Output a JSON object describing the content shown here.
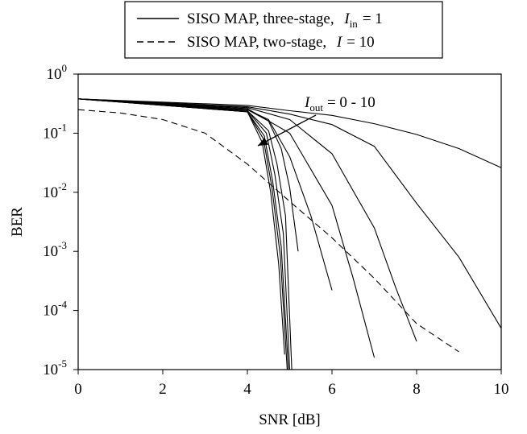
{
  "chart_data": {
    "type": "line",
    "xlabel": "SNR [dB]",
    "ylabel": "BER",
    "xlim": [
      0,
      10
    ],
    "ylim": [
      1e-05,
      1
    ],
    "yscale": "log",
    "grid": false,
    "legend_position": "top-center",
    "x_ticks": [
      "0",
      "2",
      "4",
      "6",
      "8",
      "10"
    ],
    "y_ticks": [
      {
        "base": "10",
        "exp": "0"
      },
      {
        "base": "10",
        "exp": "-1"
      },
      {
        "base": "10",
        "exp": "-2"
      },
      {
        "base": "10",
        "exp": "-3"
      },
      {
        "base": "10",
        "exp": "-4"
      },
      {
        "base": "10",
        "exp": "-5"
      }
    ],
    "legend": [
      {
        "text": "SISO MAP, three-stage,",
        "var": "I",
        "sub": "in",
        "eq": "= 1",
        "style": "solid"
      },
      {
        "text": "SISO MAP, two-stage,",
        "var": "I",
        "sub": "",
        "eq": "= 10",
        "style": "dashed"
      }
    ],
    "annotation": {
      "var": "I",
      "sub": "out",
      "text": "= 0 - 10"
    },
    "series": [
      {
        "style": "solid",
        "x": [
          0,
          4,
          5,
          6,
          7,
          8,
          9,
          10
        ],
        "y": [
          0.38,
          0.295,
          0.24,
          0.2,
          0.145,
          0.095,
          0.055,
          0.026
        ]
      },
      {
        "style": "solid",
        "x": [
          0,
          4,
          5,
          6,
          7,
          8,
          9,
          10
        ],
        "y": [
          0.38,
          0.28,
          0.21,
          0.14,
          0.06,
          0.0065,
          0.0008,
          5e-05
        ]
      },
      {
        "style": "solid",
        "x": [
          0,
          4,
          5,
          6,
          7,
          7.5,
          8
        ],
        "y": [
          0.38,
          0.27,
          0.17,
          0.045,
          0.0025,
          0.00025,
          3e-05
        ]
      },
      {
        "style": "solid",
        "x": [
          0,
          4,
          5,
          6,
          6.5,
          7
        ],
        "y": [
          0.38,
          0.26,
          0.1,
          0.006,
          0.00035,
          1.6e-05
        ]
      },
      {
        "style": "solid",
        "x": [
          0,
          4,
          4.5,
          5,
          5.5,
          6
        ],
        "y": [
          0.38,
          0.25,
          0.17,
          0.04,
          0.004,
          0.00022
        ]
      },
      {
        "style": "solid",
        "x": [
          0,
          4,
          4.5,
          4.8,
          5,
          5.2
        ],
        "y": [
          0.38,
          0.25,
          0.16,
          0.055,
          0.012,
          0.001
        ]
      },
      {
        "style": "solid",
        "x": [
          0,
          4,
          4.5,
          4.7,
          4.9,
          5.05
        ],
        "y": [
          0.38,
          0.24,
          0.11,
          0.03,
          0.004,
          1e-05
        ]
      },
      {
        "style": "solid",
        "x": [
          0,
          4,
          4.45,
          4.65,
          4.85,
          5.0
        ],
        "y": [
          0.38,
          0.24,
          0.1,
          0.02,
          0.002,
          1e-05
        ]
      },
      {
        "style": "solid",
        "x": [
          0,
          4,
          4.4,
          4.6,
          4.8,
          4.97
        ],
        "y": [
          0.38,
          0.23,
          0.09,
          0.015,
          0.0012,
          1e-05
        ]
      },
      {
        "style": "solid",
        "x": [
          0,
          4,
          4.38,
          4.58,
          4.78,
          4.94
        ],
        "y": [
          0.38,
          0.23,
          0.08,
          0.012,
          0.0008,
          1e-05
        ]
      },
      {
        "style": "solid",
        "x": [
          0,
          4,
          4.35,
          4.55,
          4.74,
          4.88
        ],
        "y": [
          0.38,
          0.23,
          0.07,
          0.01,
          0.0006,
          1.8e-05
        ]
      },
      {
        "style": "dashed",
        "x": [
          0,
          1,
          2,
          3,
          4,
          5,
          6,
          7,
          8,
          9
        ],
        "y": [
          0.25,
          0.22,
          0.17,
          0.1,
          0.03,
          0.007,
          0.0017,
          0.00035,
          6e-05,
          2e-05
        ]
      }
    ]
  }
}
